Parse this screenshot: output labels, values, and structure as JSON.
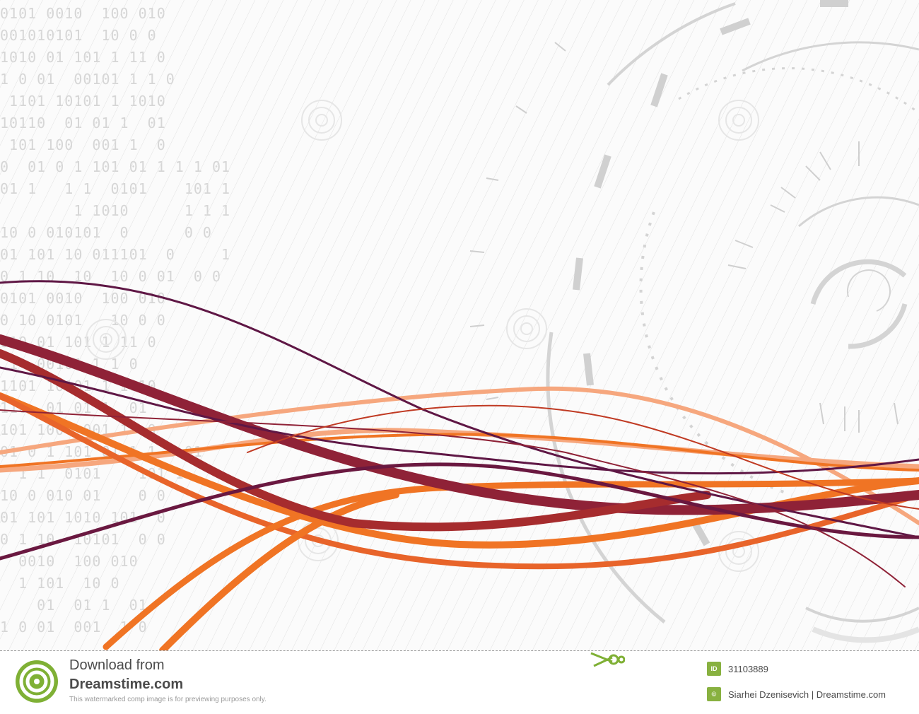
{
  "binary_lines": [
    "0101 0010  100 010",
    "001010101  10 0 0",
    "1010 01 101 1 11 0",
    "1 0 01  00101 1 1 0",
    " 1101 10101 1 1010",
    "10110  01 01 1  01",
    " 101 100  001 1  0",
    "0  01 0 1 101 01 1 1 1 01",
    "01 1   1 1  0101    101 1",
    "        1 1010      1 1 1",
    "10 0 010101  0      0 0",
    "01 101 10 011101  0     1",
    "0 1 10  10  10 0 01  0 0",
    "0101 0010  100 010",
    "0 10 0101   10 0 0",
    "010 01 101 1 11 0",
    " 1  00101 1 1 0",
    "1101 10101 1 1010",
    "110  01 01 1  01",
    "101 100  001 1  0",
    "01 0 1 101 01 1 1 1 01",
    "  1 1  0101    101 1",
    "10 0 010 01    0 0",
    "01 101 1010 101  0",
    "0 1 10  10101  0 0",
    "  0010  100 010",
    "  1 101  10 0",
    "    01  01 1  01",
    "1 0 01  001  1 0"
  ],
  "footer": {
    "download_text": "Download from",
    "brand_text": "Dreamstime.com",
    "notice_text": "This watermarked comp image is for previewing purposes only.",
    "id_badge": "ID",
    "id_value": "31103889",
    "copyright_badge": "©",
    "author_text": "Siarhei Dzenisevich | Dreamstime.com"
  },
  "colors": {
    "purple_dark": "#5f1745",
    "maroon": "#8f2237",
    "orange": "#f07424",
    "orange_light": "#f6a77e",
    "green_logo": "#7fb035",
    "grey_hud": "#cfcfcf"
  },
  "icons": {
    "logo": "spiral-logo-icon",
    "scissors": "scissors-icon"
  }
}
